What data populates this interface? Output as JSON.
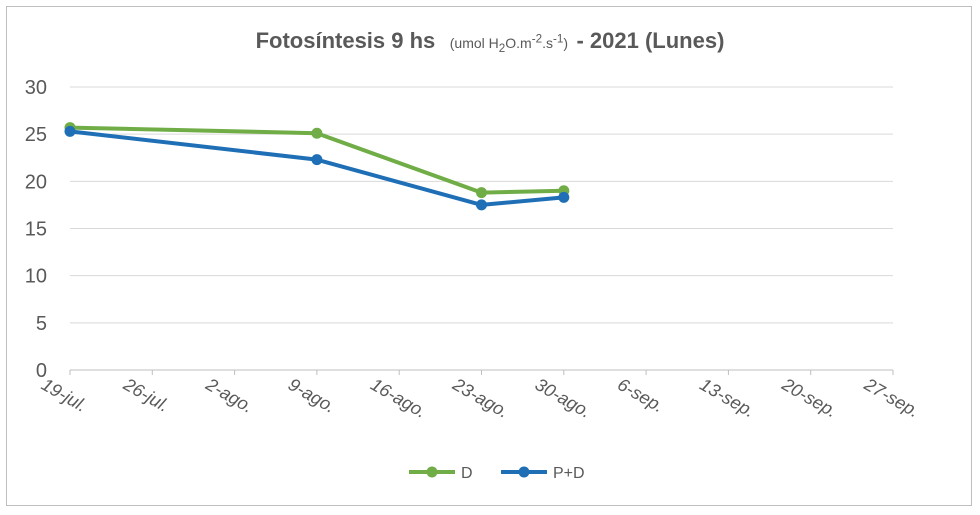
{
  "chart_data": {
    "type": "line",
    "title": {
      "main": "Fotosíntesis 9 hs",
      "unit_prefix": "(umol H",
      "unit_sub": "2",
      "unit_mid": "O.m",
      "unit_sup1": "-2",
      "unit_mid2": ".s",
      "unit_sup2": "-1",
      "unit_suffix": ")",
      "tail": "- 2021 (Lunes)"
    },
    "xlabel": "",
    "ylabel": "",
    "ylim": [
      0,
      30
    ],
    "yticks": [
      0,
      5,
      10,
      15,
      20,
      25,
      30
    ],
    "x_tick_labels": [
      "19-jul.",
      "26-jul.",
      "2-ago.",
      "9-ago.",
      "16-ago.",
      "23-ago.",
      "30-ago.",
      "6-sep.",
      "13-sep.",
      "20-sep.",
      "27-sep."
    ],
    "grid": true,
    "legend_position": "bottom",
    "series": [
      {
        "name": "D",
        "color": "#70ad47",
        "points": [
          {
            "x": "19-jul.",
            "y": 25.7
          },
          {
            "x": "9-ago.",
            "y": 25.1
          },
          {
            "x": "23-ago.",
            "y": 18.8
          },
          {
            "x": "30-ago.",
            "y": 19.0
          }
        ]
      },
      {
        "name": "P+D",
        "color": "#1f6fb6",
        "points": [
          {
            "x": "19-jul.",
            "y": 25.3
          },
          {
            "x": "9-ago.",
            "y": 22.3
          },
          {
            "x": "23-ago.",
            "y": 17.5
          },
          {
            "x": "30-ago.",
            "y": 18.3
          }
        ]
      }
    ]
  }
}
